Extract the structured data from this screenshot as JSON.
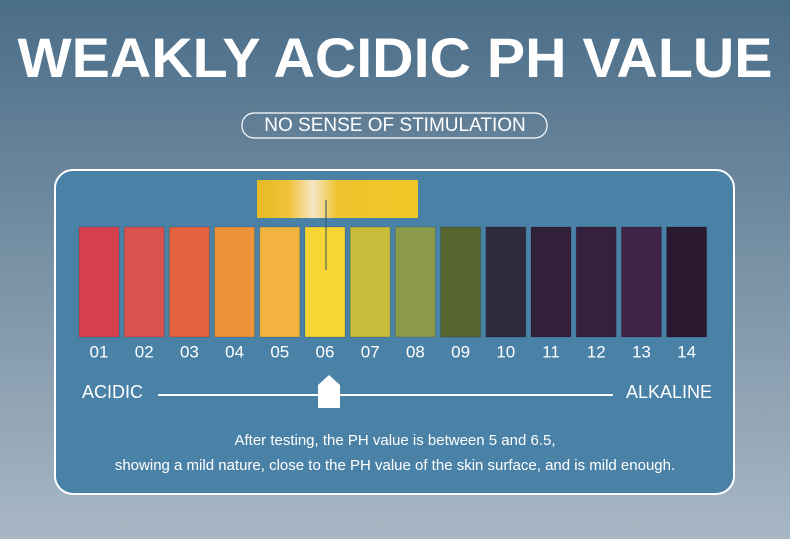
{
  "header": {
    "title": "WEAKLY ACIDIC PH VALUE",
    "subtitle": "NO SENSE OF STIMULATION"
  },
  "scale": {
    "swatches": [
      {
        "label": "01",
        "color": "#d5404f"
      },
      {
        "label": "02",
        "color": "#d9524f"
      },
      {
        "label": "03",
        "color": "#e4623e"
      },
      {
        "label": "04",
        "color": "#ee933a"
      },
      {
        "label": "05",
        "color": "#f2b33f"
      },
      {
        "label": "06",
        "color": "#f7d634"
      },
      {
        "label": "07",
        "color": "#c9bb3b"
      },
      {
        "label": "08",
        "color": "#8c9a4b"
      },
      {
        "label": "09",
        "color": "#586530"
      },
      {
        "label": "10",
        "color": "#2e2b3e"
      },
      {
        "label": "11",
        "color": "#321f3a"
      },
      {
        "label": "12",
        "color": "#35213e"
      },
      {
        "label": "13",
        "color": "#3f2447"
      },
      {
        "label": "14",
        "color": "#2b1831"
      }
    ],
    "left_label": "ACIDIC",
    "right_label": "ALKALINE"
  },
  "description": [
    "After testing, the PH value is between 5 and 6.5,",
    "showing a mild nature, close to the PH value of the skin surface, and is mild enough."
  ]
}
